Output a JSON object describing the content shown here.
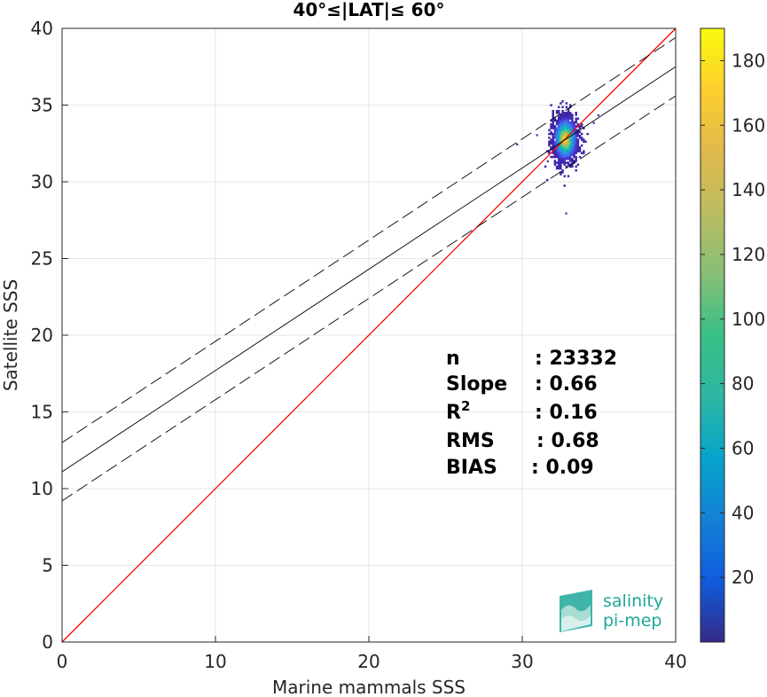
{
  "chart_data": {
    "type": "scatter",
    "title": "40°≤|LAT|≤ 60°",
    "xlabel": "Marine mammals SSS",
    "ylabel": "Satellite SSS",
    "xlim": [
      0,
      40
    ],
    "ylim": [
      0,
      40
    ],
    "xticks": [
      0,
      10,
      20,
      30,
      40
    ],
    "yticks": [
      0,
      5,
      10,
      15,
      20,
      25,
      30,
      35,
      40
    ],
    "grid": true,
    "density_cluster": {
      "center_x": 32.8,
      "center_y": 32.8,
      "x_range": [
        31.5,
        34.3
      ],
      "y_range": [
        28.0,
        35.4
      ],
      "max_count": 190
    },
    "colorbar": {
      "range": [
        0,
        190
      ],
      "ticks": [
        20,
        40,
        60,
        80,
        100,
        120,
        140,
        160,
        180
      ],
      "colormap": "parula"
    },
    "lines": [
      {
        "role": "identity",
        "slope": 1.0,
        "intercept": 0.0,
        "color": "#ff0000",
        "style": "solid"
      },
      {
        "role": "regression",
        "slope": 0.66,
        "intercept": 11.1,
        "color": "#000000",
        "style": "solid"
      },
      {
        "role": "upper-bound",
        "slope": 0.66,
        "intercept": 13.0,
        "color": "#000000",
        "style": "dashed"
      },
      {
        "role": "lower-bound",
        "slope": 0.66,
        "intercept": 9.2,
        "color": "#000000",
        "style": "dashed"
      }
    ],
    "stats": [
      {
        "label": "n",
        "value": ": 23332"
      },
      {
        "label": "Slope",
        "value": ": 0.66"
      },
      {
        "label": "R",
        "sup": "2",
        "value": ": 0.16"
      },
      {
        "label": "RMS",
        "value": ": 0.68"
      },
      {
        "label": "BIAS",
        "value": ": 0.09"
      }
    ]
  },
  "logo": {
    "line1": "salinity",
    "line2": "pi-mep",
    "color": "#1fa79a"
  }
}
